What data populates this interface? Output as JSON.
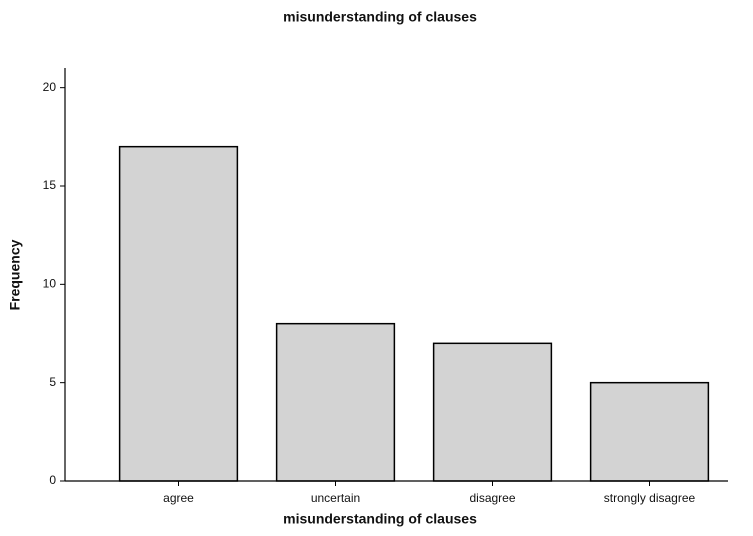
{
  "chart_data": {
    "type": "bar",
    "title": "misunderstanding of clauses",
    "xlabel": "misunderstanding of clauses",
    "ylabel": "Frequency",
    "categories": [
      "agree",
      "uncertain",
      "disagree",
      "strongly disagree"
    ],
    "values": [
      17,
      8,
      7,
      5
    ],
    "color": "#d3d3d3",
    "ylim": [
      0,
      21
    ],
    "yticks": [
      0,
      5,
      10,
      15,
      20
    ],
    "grid": false
  }
}
